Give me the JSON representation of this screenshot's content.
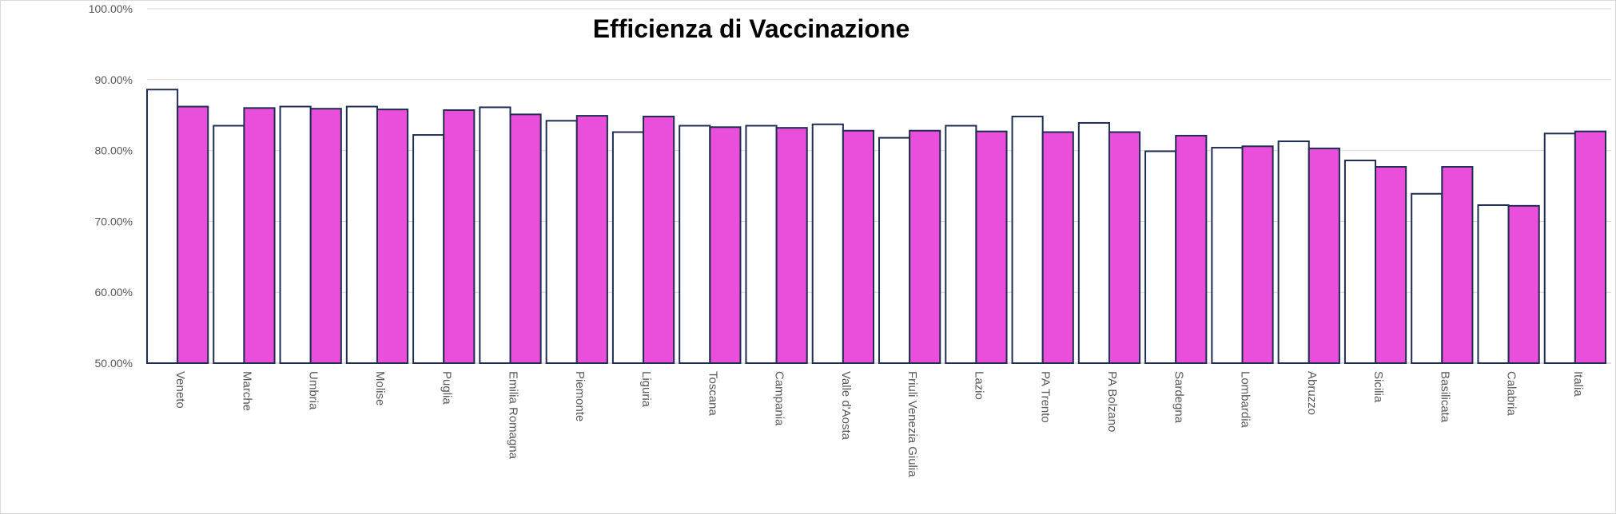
{
  "chart_data": {
    "type": "bar",
    "title": "Efficienza di Vaccinazione",
    "xlabel": "",
    "ylabel": "",
    "ylim": [
      0.5,
      1.0
    ],
    "y_ticks": [
      0.5,
      0.6,
      0.7,
      0.8,
      0.9,
      1.0
    ],
    "y_tick_labels": [
      "50.00%",
      "60.00%",
      "70.00%",
      "80.00%",
      "90.00%",
      "100.00%"
    ],
    "grid": true,
    "legend": "none",
    "categories": [
      "Veneto",
      "Marche",
      "Umbria",
      "Molise",
      "Puglia",
      "Emilia Romagna",
      "Piemonte",
      "Liguria",
      "Toscana",
      "Campania",
      "Valle d'Aosta",
      "Friuli Venezia Giulia",
      "Lazio",
      "PA Trento",
      "PA Bolzano",
      "Sardegna",
      "Lombardia",
      "Abruzzo",
      "Sicilia",
      "Basilicata",
      "Calabria",
      "Italia"
    ],
    "series": [
      {
        "color": "#ffffff",
        "stroke": "#1f2d50",
        "values": [
          0.886,
          0.835,
          0.862,
          0.862,
          0.822,
          0.861,
          0.842,
          0.826,
          0.835,
          0.835,
          0.837,
          0.818,
          0.835,
          0.848,
          0.839,
          0.799,
          0.804,
          0.813,
          0.786,
          0.739,
          0.723,
          0.824
        ]
      },
      {
        "color": "#ea4fdb",
        "stroke": "#1f2d50",
        "values": [
          0.862,
          0.86,
          0.859,
          0.858,
          0.857,
          0.851,
          0.849,
          0.848,
          0.833,
          0.832,
          0.828,
          0.828,
          0.827,
          0.826,
          0.826,
          0.821,
          0.806,
          0.803,
          0.777,
          0.777,
          0.722,
          0.827
        ]
      }
    ]
  }
}
